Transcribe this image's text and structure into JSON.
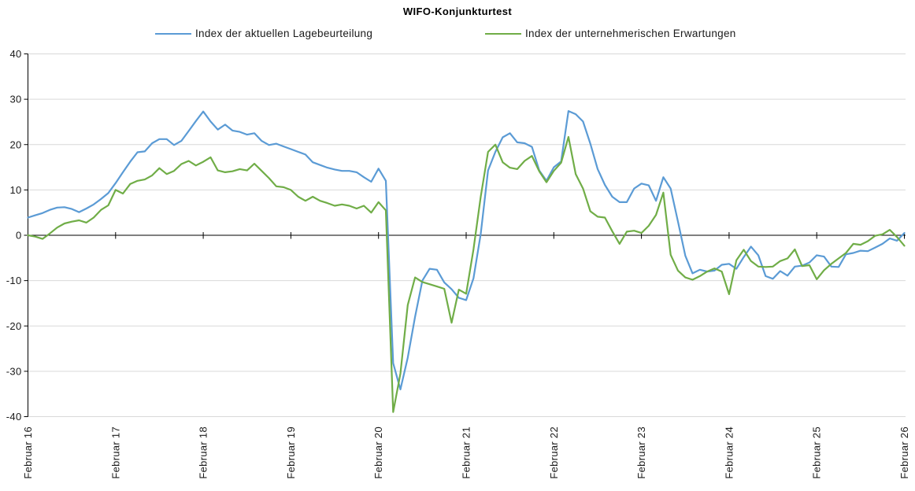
{
  "title": "WIFO-Konjunkturtest",
  "legend": [
    {
      "label": "Index der aktuellen Lagebeurteilung",
      "color": "#5B9BD5"
    },
    {
      "label": "Index der unternehmerischen Erwartungen",
      "color": "#70AD47"
    }
  ],
  "colors": {
    "gridline": "#D9D9D9",
    "axis": "#000000",
    "text": "#1a1a1a",
    "background": "#FFFFFF",
    "series_blue": "#5B9BD5",
    "series_green": "#70AD47"
  },
  "chart_data": {
    "type": "line",
    "title": "WIFO-Konjunkturtest",
    "xlabel": "",
    "ylabel": "",
    "ylim": [
      -40,
      40
    ],
    "y_tick_step": 10,
    "y_ticks": [
      40,
      30,
      20,
      10,
      0,
      -10,
      -20,
      -30,
      -40
    ],
    "grid": "horizontal",
    "legend_position": "top",
    "x": {
      "unit": "month",
      "points": 121,
      "start_label": "Februar 16",
      "end_label": "Februar 26",
      "tick_every_months": 12,
      "tick_label_rotation_deg": -90
    },
    "x_tick_labels": [
      "Februar 16",
      "Februar 17",
      "Februar 18",
      "Februar 19",
      "Februar 20",
      "Februar 21",
      "Februar 22",
      "Februar 23",
      "Februar 24",
      "Februar 25",
      "Februar 26"
    ],
    "series": [
      {
        "name": "Index der aktuellen Lagebeurteilung",
        "color": "#5B9BD5",
        "values": [
          3.9,
          4.4,
          4.9,
          5.6,
          6.1,
          6.2,
          5.8,
          5.1,
          5.9,
          6.8,
          8.0,
          9.3,
          11.5,
          13.9,
          16.2,
          18.3,
          18.5,
          20.3,
          21.2,
          21.2,
          19.9,
          20.8,
          23.0,
          25.2,
          27.3,
          25.1,
          23.3,
          24.4,
          23.1,
          22.8,
          22.2,
          22.5,
          20.8,
          19.9,
          20.2,
          19.6,
          19.0,
          18.4,
          17.8,
          16.1,
          15.5,
          14.9,
          14.5,
          14.2,
          14.2,
          13.9,
          12.8,
          11.8,
          14.7,
          12.0,
          -28.2,
          -34.0,
          -27.0,
          -18.0,
          -10.0,
          -7.4,
          -7.6,
          -10.4,
          -11.9,
          -13.8,
          -14.3,
          -9.5,
          0.3,
          14.3,
          18.4,
          21.6,
          22.5,
          20.5,
          20.3,
          19.5,
          14.3,
          12.0,
          15.0,
          16.3,
          27.4,
          26.7,
          25.1,
          20.2,
          14.6,
          11.1,
          8.5,
          7.3,
          7.3,
          10.3,
          11.4,
          11.0,
          7.6,
          12.8,
          10.3,
          3.0,
          -4.5,
          -8.4,
          -7.6,
          -8.0,
          -7.8,
          -6.5,
          -6.3,
          -7.4,
          -4.8,
          -2.5,
          -4.4,
          -9.0,
          -9.6,
          -7.9,
          -8.9,
          -6.9,
          -6.7,
          -6.0,
          -4.4,
          -4.7,
          -6.9,
          -7.0,
          -4.2,
          -3.9,
          -3.4,
          -3.5,
          -2.7,
          -1.9,
          -0.7,
          -1.2,
          0.5
        ]
      },
      {
        "name": "Index der unternehmerischen Erwartungen",
        "color": "#70AD47",
        "values": [
          0.0,
          -0.3,
          -0.8,
          0.4,
          1.7,
          2.6,
          3.0,
          3.3,
          2.8,
          3.9,
          5.6,
          6.6,
          10.0,
          9.2,
          11.3,
          12.0,
          12.3,
          13.2,
          14.8,
          13.5,
          14.2,
          15.7,
          16.4,
          15.4,
          16.2,
          17.2,
          14.3,
          13.9,
          14.1,
          14.6,
          14.3,
          15.8,
          14.2,
          12.6,
          10.8,
          10.6,
          10.0,
          8.5,
          7.6,
          8.5,
          7.6,
          7.1,
          6.5,
          6.8,
          6.5,
          5.9,
          6.5,
          5.0,
          7.3,
          5.5,
          -39.0,
          -30.5,
          -15.4,
          -9.3,
          -10.3,
          -10.8,
          -11.3,
          -11.8,
          -19.3,
          -12.0,
          -12.9,
          -3.1,
          8.5,
          18.4,
          20.0,
          16.1,
          14.9,
          14.6,
          16.4,
          17.5,
          14.1,
          11.7,
          14.2,
          16.0,
          21.7,
          13.5,
          10.3,
          5.3,
          4.1,
          3.9,
          0.9,
          -1.9,
          0.8,
          1.0,
          0.5,
          2.1,
          4.5,
          9.4,
          -4.3,
          -7.8,
          -9.3,
          -9.8,
          -9.0,
          -8.0,
          -7.3,
          -8.0,
          -13.0,
          -5.5,
          -3.2,
          -5.7,
          -6.9,
          -7.0,
          -6.9,
          -5.7,
          -5.1,
          -3.1,
          -6.8,
          -6.6,
          -9.7,
          -7.7,
          -6.3,
          -5.1,
          -3.9,
          -1.9,
          -2.1,
          -1.3,
          -0.1,
          0.2,
          1.2,
          -0.4,
          -2.3
        ]
      }
    ]
  }
}
